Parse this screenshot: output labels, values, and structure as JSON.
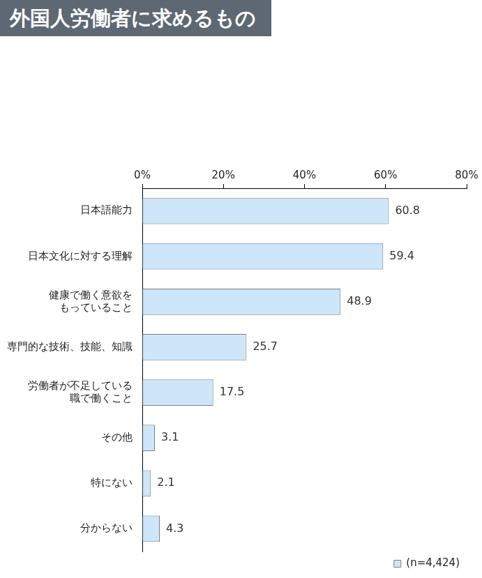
{
  "chart_data": {
    "type": "bar",
    "orientation": "horizontal",
    "title": "外国人労働者に求めるもの",
    "categories": [
      "日本語能力",
      "日本文化に対する理解",
      [
        "健康で働く意欲を",
        "もっていること"
      ],
      "専門的な技術、技能、知識",
      [
        "労働者が不足している",
        "職で働くこと"
      ],
      "その他",
      "特にない",
      "分からない"
    ],
    "series": [
      {
        "name": "(n=4,424)",
        "color": "#cde6fa",
        "values": [
          60.8,
          59.4,
          48.9,
          25.7,
          17.5,
          3.1,
          2.1,
          4.3
        ]
      }
    ],
    "xlim": [
      0,
      80
    ],
    "xticks": [
      {
        "value": 0,
        "label": "0%"
      },
      {
        "value": 20,
        "label": "20%"
      },
      {
        "value": 40,
        "label": "40%"
      },
      {
        "value": 60,
        "label": "60%"
      },
      {
        "value": 80,
        "label": "80%"
      }
    ],
    "grid": false,
    "data_labels": true,
    "legend": "lower right"
  }
}
